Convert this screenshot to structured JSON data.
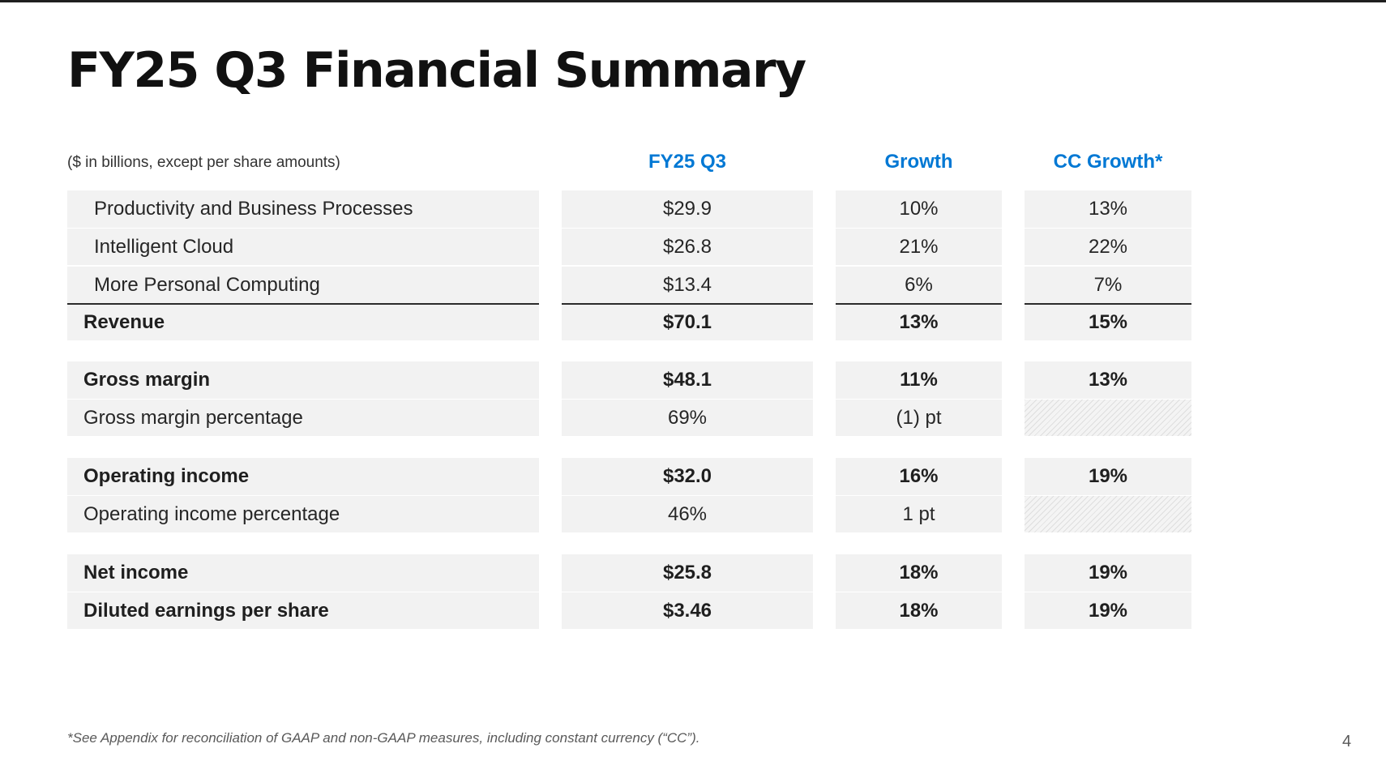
{
  "title": "FY25 Q3 Financial Summary",
  "units_note": "($ in billions, except per share amounts)",
  "columns": {
    "fy": "FY25 Q3",
    "growth": "Growth",
    "cc_growth": "CC Growth*"
  },
  "rows": [
    {
      "label": "Productivity and Business Processes",
      "fy": "$29.9",
      "growth": "10%",
      "cc": "13%"
    },
    {
      "label": "Intelligent Cloud",
      "fy": "$26.8",
      "growth": "21%",
      "cc": "22%"
    },
    {
      "label": "More Personal Computing",
      "fy": "$13.4",
      "growth": "6%",
      "cc": "7%"
    },
    {
      "label": "Revenue",
      "fy": "$70.1",
      "growth": "13%",
      "cc": "15%"
    },
    {
      "label": "Gross margin",
      "fy": "$48.1",
      "growth": "11%",
      "cc": "13%"
    },
    {
      "label": "Gross margin percentage",
      "fy": "69%",
      "growth": "(1) pt",
      "cc": ""
    },
    {
      "label": "Operating income",
      "fy": "$32.0",
      "growth": "16%",
      "cc": "19%"
    },
    {
      "label": "Operating income percentage",
      "fy": "46%",
      "growth": "1 pt",
      "cc": ""
    },
    {
      "label": "Net income",
      "fy": "$25.8",
      "growth": "18%",
      "cc": "19%"
    },
    {
      "label": "Diluted earnings per share",
      "fy": "$3.46",
      "growth": "18%",
      "cc": "19%"
    }
  ],
  "footnote": "*See Appendix for reconciliation of GAAP and non-GAAP measures, including constant currency (“CC”).",
  "page_number": "4",
  "colors": {
    "header_accent": "#0078d4",
    "row_fill": "#f2f2f2",
    "title_text": "#111111"
  }
}
